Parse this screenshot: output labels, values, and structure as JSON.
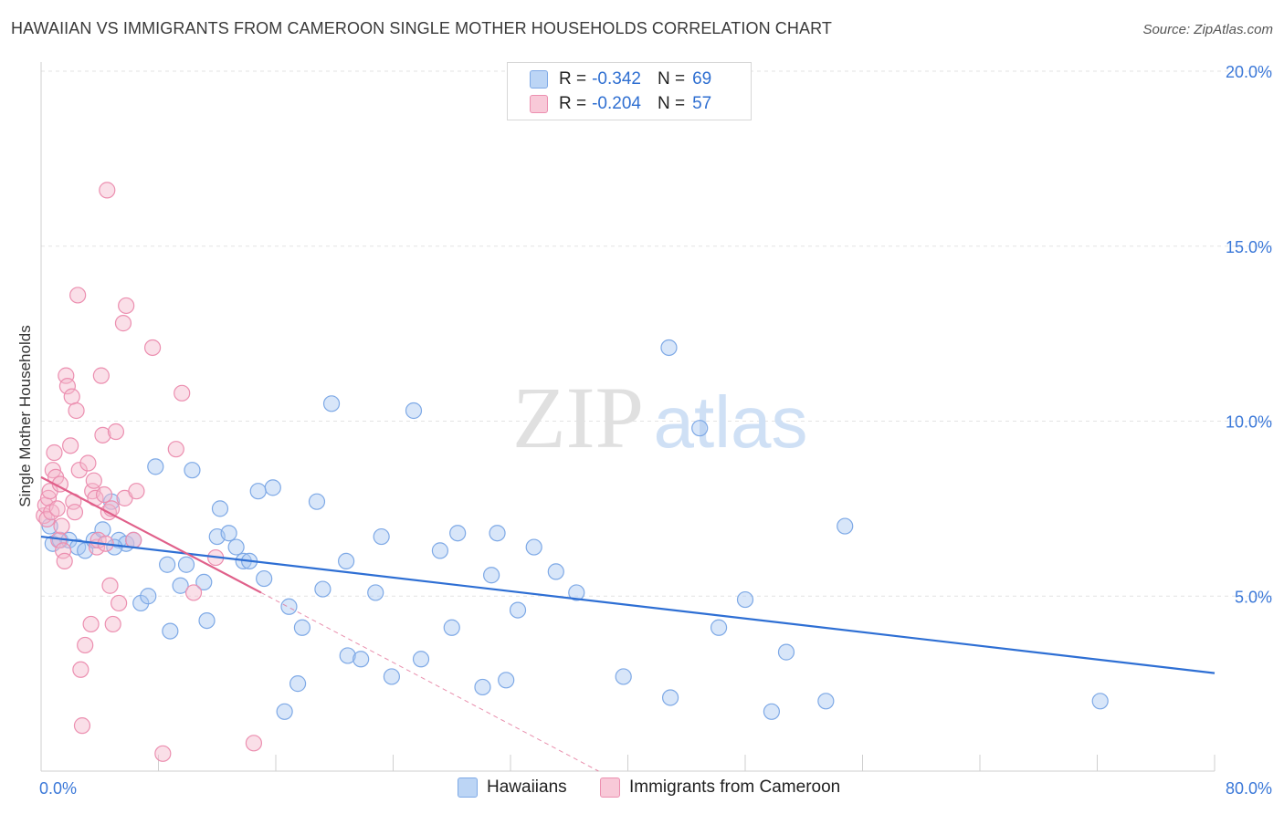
{
  "title": "HAWAIIAN VS IMMIGRANTS FROM CAMEROON SINGLE MOTHER HOUSEHOLDS CORRELATION CHART",
  "source": "Source: ZipAtlas.com",
  "watermark": {
    "zip": "ZIP",
    "atlas": "atlas"
  },
  "colors": {
    "blue_fill": "#a9c8f2",
    "blue_stroke": "#7ea9e6",
    "blue_line": "#2e6fd4",
    "pink_fill": "#f5b8cc",
    "pink_stroke": "#ec8fb0",
    "pink_line": "#e0608a",
    "axis_text": "#3b78d8",
    "grid": "#e3e3e3"
  },
  "legend": {
    "rows": [
      {
        "r_label": "R =",
        "r_value": "-0.342",
        "n_label": "N =",
        "n_value": "69"
      },
      {
        "r_label": "R =",
        "r_value": "-0.204",
        "n_label": "N =",
        "n_value": "57"
      }
    ]
  },
  "bottom_legend": {
    "series1": "Hawaiians",
    "series2": "Immigrants from Cameroon"
  },
  "chart_data": {
    "type": "scatter",
    "xlabel": "",
    "ylabel": "Single Mother Households",
    "xlim": [
      0,
      80
    ],
    "ylim": [
      0,
      20
    ],
    "x_tick_labels": [
      "0.0%",
      "80.0%"
    ],
    "y_tick_labels": [
      "5.0%",
      "10.0%",
      "15.0%",
      "20.0%"
    ],
    "y_ticks": [
      5,
      10,
      15,
      20
    ],
    "grid": true,
    "series": [
      {
        "name": "Hawaiians",
        "color": "blue",
        "trend": {
          "x0": 0,
          "y0": 6.7,
          "x1": 80,
          "y1": 2.8
        },
        "points": [
          [
            0.6,
            7.0
          ],
          [
            0.8,
            6.5
          ],
          [
            1.3,
            6.6
          ],
          [
            1.9,
            6.6
          ],
          [
            2.5,
            6.4
          ],
          [
            3.0,
            6.3
          ],
          [
            3.6,
            6.6
          ],
          [
            4.2,
            6.9
          ],
          [
            4.8,
            7.7
          ],
          [
            5.3,
            6.6
          ],
          [
            5.8,
            6.5
          ],
          [
            5.0,
            6.4
          ],
          [
            6.3,
            6.6
          ],
          [
            6.8,
            4.8
          ],
          [
            7.3,
            5.0
          ],
          [
            7.8,
            8.7
          ],
          [
            8.6,
            5.9
          ],
          [
            8.8,
            4.0
          ],
          [
            9.5,
            5.3
          ],
          [
            9.9,
            5.9
          ],
          [
            10.3,
            8.6
          ],
          [
            11.1,
            5.4
          ],
          [
            11.3,
            4.3
          ],
          [
            12.0,
            6.7
          ],
          [
            12.2,
            7.5
          ],
          [
            12.8,
            6.8
          ],
          [
            13.3,
            6.4
          ],
          [
            13.8,
            6.0
          ],
          [
            14.2,
            6.0
          ],
          [
            14.8,
            8.0
          ],
          [
            15.2,
            5.5
          ],
          [
            15.8,
            8.1
          ],
          [
            16.6,
            1.7
          ],
          [
            16.9,
            4.7
          ],
          [
            17.5,
            2.5
          ],
          [
            17.8,
            4.1
          ],
          [
            18.8,
            7.7
          ],
          [
            19.2,
            5.2
          ],
          [
            19.8,
            10.5
          ],
          [
            20.8,
            6.0
          ],
          [
            20.9,
            3.3
          ],
          [
            21.8,
            3.2
          ],
          [
            22.8,
            5.1
          ],
          [
            23.2,
            6.7
          ],
          [
            23.9,
            2.7
          ],
          [
            25.4,
            10.3
          ],
          [
            25.9,
            3.2
          ],
          [
            27.2,
            6.3
          ],
          [
            28.0,
            4.1
          ],
          [
            28.4,
            6.8
          ],
          [
            30.1,
            2.4
          ],
          [
            30.7,
            5.6
          ],
          [
            31.1,
            6.8
          ],
          [
            31.7,
            2.6
          ],
          [
            32.5,
            4.6
          ],
          [
            33.6,
            6.4
          ],
          [
            35.1,
            5.7
          ],
          [
            36.5,
            5.1
          ],
          [
            39.7,
            2.7
          ],
          [
            42.8,
            12.1
          ],
          [
            42.9,
            2.1
          ],
          [
            44.9,
            9.8
          ],
          [
            46.2,
            4.1
          ],
          [
            48.0,
            4.9
          ],
          [
            49.8,
            1.7
          ],
          [
            50.8,
            3.4
          ],
          [
            53.5,
            2.0
          ],
          [
            54.8,
            7.0
          ],
          [
            72.2,
            2.0
          ]
        ]
      },
      {
        "name": "Immigrants from Cameroon",
        "color": "pink",
        "trend": {
          "x0": 0,
          "y0": 8.4,
          "x1": 15.0,
          "y1": 5.1
        },
        "trend_extension": {
          "x0": 15.0,
          "y0": 5.1,
          "x1": 38.0,
          "y1": 0.0
        },
        "points": [
          [
            0.2,
            7.3
          ],
          [
            0.3,
            7.6
          ],
          [
            0.4,
            7.2
          ],
          [
            0.5,
            7.8
          ],
          [
            0.6,
            8.0
          ],
          [
            0.7,
            7.4
          ],
          [
            0.8,
            8.6
          ],
          [
            0.9,
            9.1
          ],
          [
            1.0,
            8.4
          ],
          [
            1.1,
            7.5
          ],
          [
            1.2,
            6.6
          ],
          [
            1.3,
            8.2
          ],
          [
            1.4,
            7.0
          ],
          [
            1.5,
            6.3
          ],
          [
            1.6,
            6.0
          ],
          [
            1.7,
            11.3
          ],
          [
            1.8,
            11.0
          ],
          [
            2.0,
            9.3
          ],
          [
            2.1,
            10.7
          ],
          [
            2.2,
            7.7
          ],
          [
            2.3,
            7.4
          ],
          [
            2.4,
            10.3
          ],
          [
            2.5,
            13.6
          ],
          [
            2.6,
            8.6
          ],
          [
            2.7,
            2.9
          ],
          [
            2.8,
            1.3
          ],
          [
            3.0,
            3.6
          ],
          [
            3.2,
            8.8
          ],
          [
            3.4,
            4.2
          ],
          [
            3.5,
            8.0
          ],
          [
            3.6,
            8.3
          ],
          [
            3.7,
            7.8
          ],
          [
            3.8,
            6.4
          ],
          [
            3.9,
            6.6
          ],
          [
            4.1,
            11.3
          ],
          [
            4.2,
            9.6
          ],
          [
            4.3,
            7.9
          ],
          [
            4.4,
            6.5
          ],
          [
            4.5,
            16.6
          ],
          [
            4.6,
            7.4
          ],
          [
            4.7,
            5.3
          ],
          [
            4.8,
            7.5
          ],
          [
            4.9,
            4.2
          ],
          [
            5.1,
            9.7
          ],
          [
            5.3,
            4.8
          ],
          [
            5.6,
            12.8
          ],
          [
            5.7,
            7.8
          ],
          [
            5.8,
            13.3
          ],
          [
            6.3,
            6.6
          ],
          [
            6.5,
            8.0
          ],
          [
            7.6,
            12.1
          ],
          [
            8.3,
            0.5
          ],
          [
            9.2,
            9.2
          ],
          [
            9.6,
            10.8
          ],
          [
            10.4,
            5.1
          ],
          [
            11.9,
            6.1
          ],
          [
            14.5,
            0.8
          ]
        ]
      }
    ]
  }
}
